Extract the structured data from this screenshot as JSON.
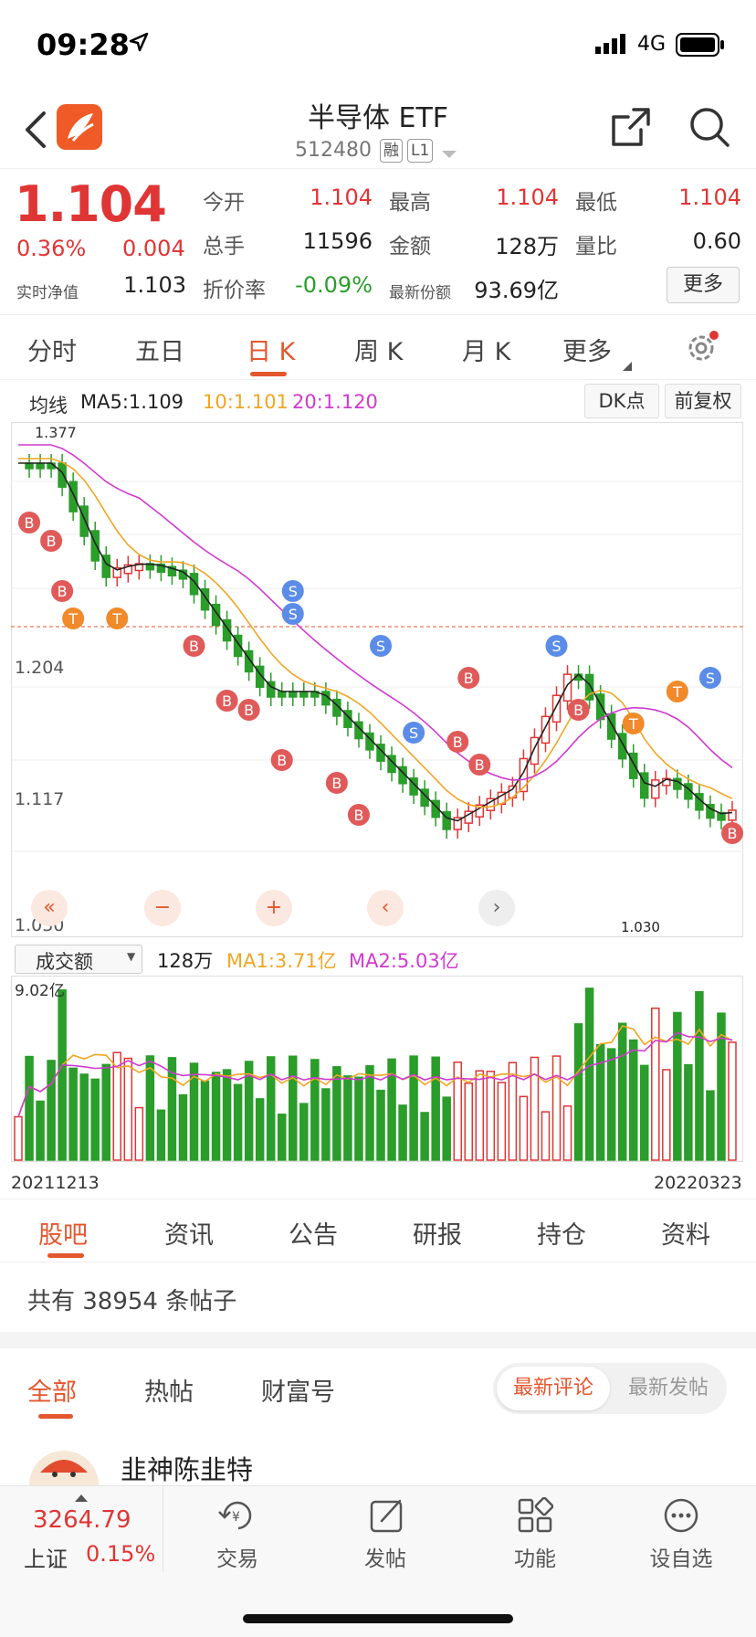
{
  "status": {
    "time": "09:28",
    "network": "4G"
  },
  "header": {
    "title": "半导体 ETF",
    "code": "512480",
    "tag_margin": "融",
    "tag_level": "L1"
  },
  "quote": {
    "price": "1.104",
    "change_pct": "0.36%",
    "change": "0.004",
    "nav_label": "实时净值",
    "nav_value": "1.103",
    "open_label": "今开",
    "open": "1.104",
    "high_label": "最高",
    "high": "1.104",
    "low_label": "最低",
    "low": "1.104",
    "vol_label": "总手",
    "vol": "11596",
    "amount_label": "金额",
    "amount": "128万",
    "ratio_label": "量比",
    "ratio": "0.60",
    "discount_label": "折价率",
    "discount": "-0.09%",
    "share_label": "最新份额",
    "share": "93.69亿",
    "more": "更多"
  },
  "chart_tabs": [
    "分时",
    "五日",
    "日 K",
    "周 K",
    "月 K",
    "更多"
  ],
  "chart_legend": {
    "title": "均线",
    "ma5": "MA5:1.109",
    "ma10": "10:1.101",
    "ma20": "20:1.120",
    "dk": "DK点",
    "adj": "前复权"
  },
  "chart_data": {
    "type": "candlestick",
    "y_labels": [
      "1.377",
      "1.204",
      "1.117",
      "1.030"
    ],
    "last_price_line": "1.204",
    "low_marker": "1.030",
    "volume_title": "成交额",
    "volume_value": "128万",
    "vol_ma1": "MA1:3.71亿",
    "vol_ma2": "MA2:5.03亿",
    "vol_max_label": "9.02亿",
    "start_date": "20211213",
    "end_date": "20220323"
  },
  "content_tabs": [
    "股吧",
    "资讯",
    "公告",
    "研报",
    "持仓",
    "资料"
  ],
  "post_count_text": "共有 38954 条帖子",
  "filter_tabs": [
    "全部",
    "热帖",
    "财富号"
  ],
  "sort_toggle": [
    "最新评论",
    "最新发帖"
  ],
  "first_post_user": "韭神陈韭特",
  "bottom_bar": {
    "index_value": "3264.79",
    "index_name": "上证",
    "index_change": "0.15%",
    "items": [
      "交易",
      "发帖",
      "功能",
      "设自选"
    ]
  },
  "colors": {
    "up": "#e03535",
    "down": "#2a9d2a",
    "accent": "#e4572e",
    "ma5": "#222222",
    "ma10": "#f0a623",
    "ma20": "#d03ad0"
  }
}
